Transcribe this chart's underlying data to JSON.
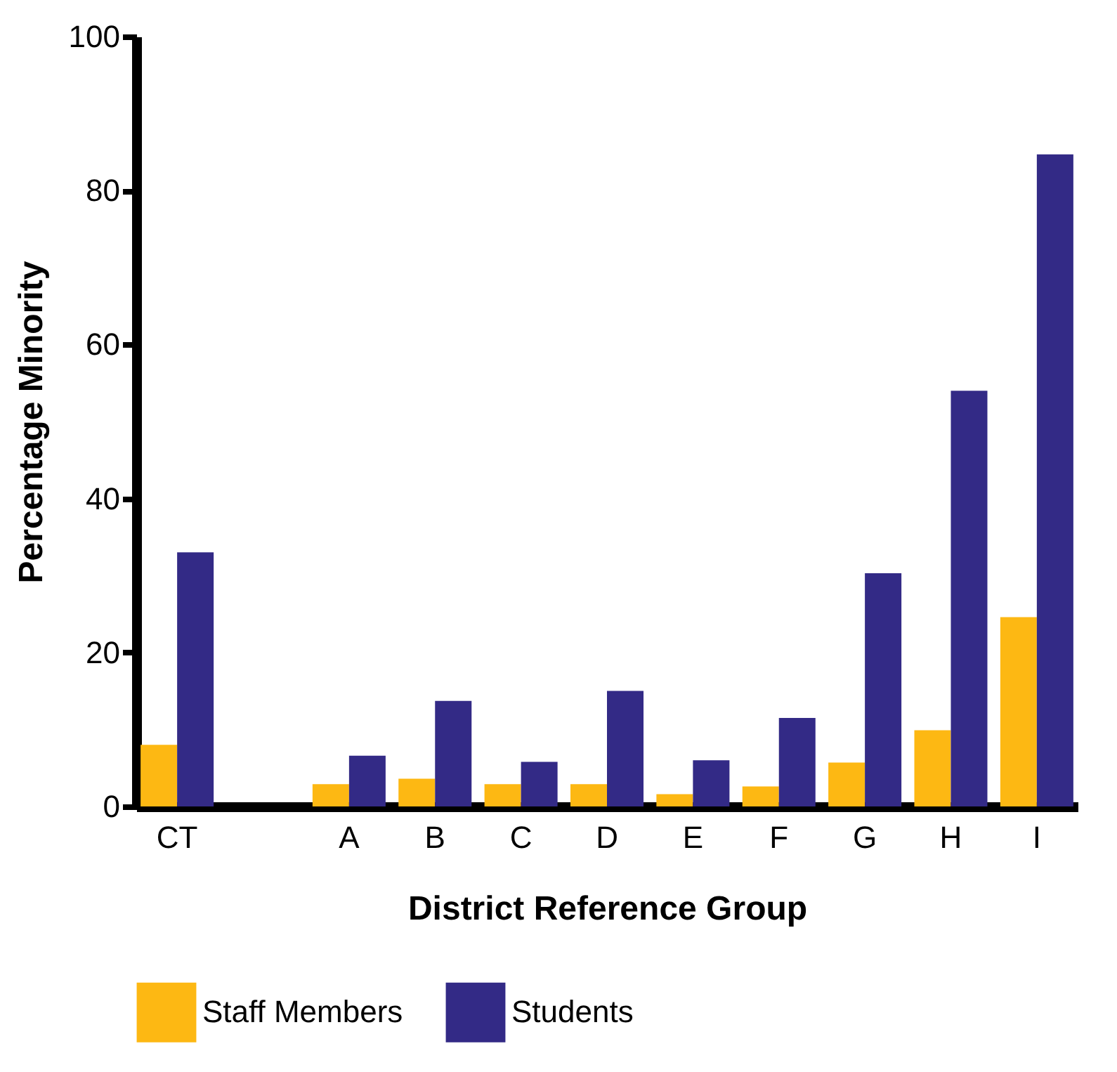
{
  "chart_data": {
    "type": "bar",
    "xlabel": "District Reference Group",
    "ylabel": "Percentage Minority",
    "categories": [
      "CT",
      null,
      "A",
      "B",
      "C",
      "D",
      "E",
      "F",
      "G",
      "H",
      "I"
    ],
    "series": [
      {
        "name": "Staff Members",
        "color": "#fdb813",
        "values": [
          8.0,
          null,
          2.9,
          3.6,
          2.9,
          2.9,
          1.6,
          2.6,
          5.7,
          9.9,
          24.6
        ]
      },
      {
        "name": "Students",
        "color": "#332a86",
        "values": [
          33.0,
          null,
          6.6,
          13.7,
          5.8,
          15.0,
          6.0,
          11.5,
          30.3,
          54.0,
          84.7
        ]
      }
    ],
    "ylim": [
      0,
      100
    ],
    "yticks": [
      0,
      20,
      40,
      60,
      80,
      100
    ],
    "grid": false,
    "legend": "bottom"
  }
}
